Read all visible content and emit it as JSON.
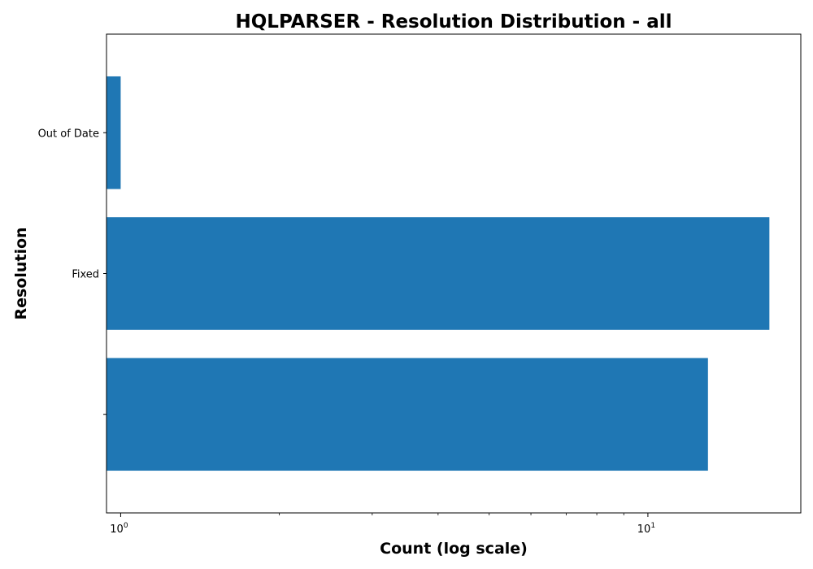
{
  "chart_data": {
    "type": "bar",
    "orientation": "horizontal",
    "title": "HQLPARSER - Resolution Distribution - all",
    "xlabel": "Count (log scale)",
    "ylabel": "Resolution",
    "x_scale": "log",
    "xlim": [
      0.94,
      19.5
    ],
    "categories": [
      "",
      "Fixed",
      "Out of Date"
    ],
    "values": [
      13,
      17,
      1
    ],
    "bar_color": "#1f77b4",
    "x_ticks": [
      {
        "base": "10",
        "exp": "0",
        "value": 1
      },
      {
        "base": "10",
        "exp": "1",
        "value": 10
      }
    ],
    "grid": false,
    "legend": "none"
  }
}
